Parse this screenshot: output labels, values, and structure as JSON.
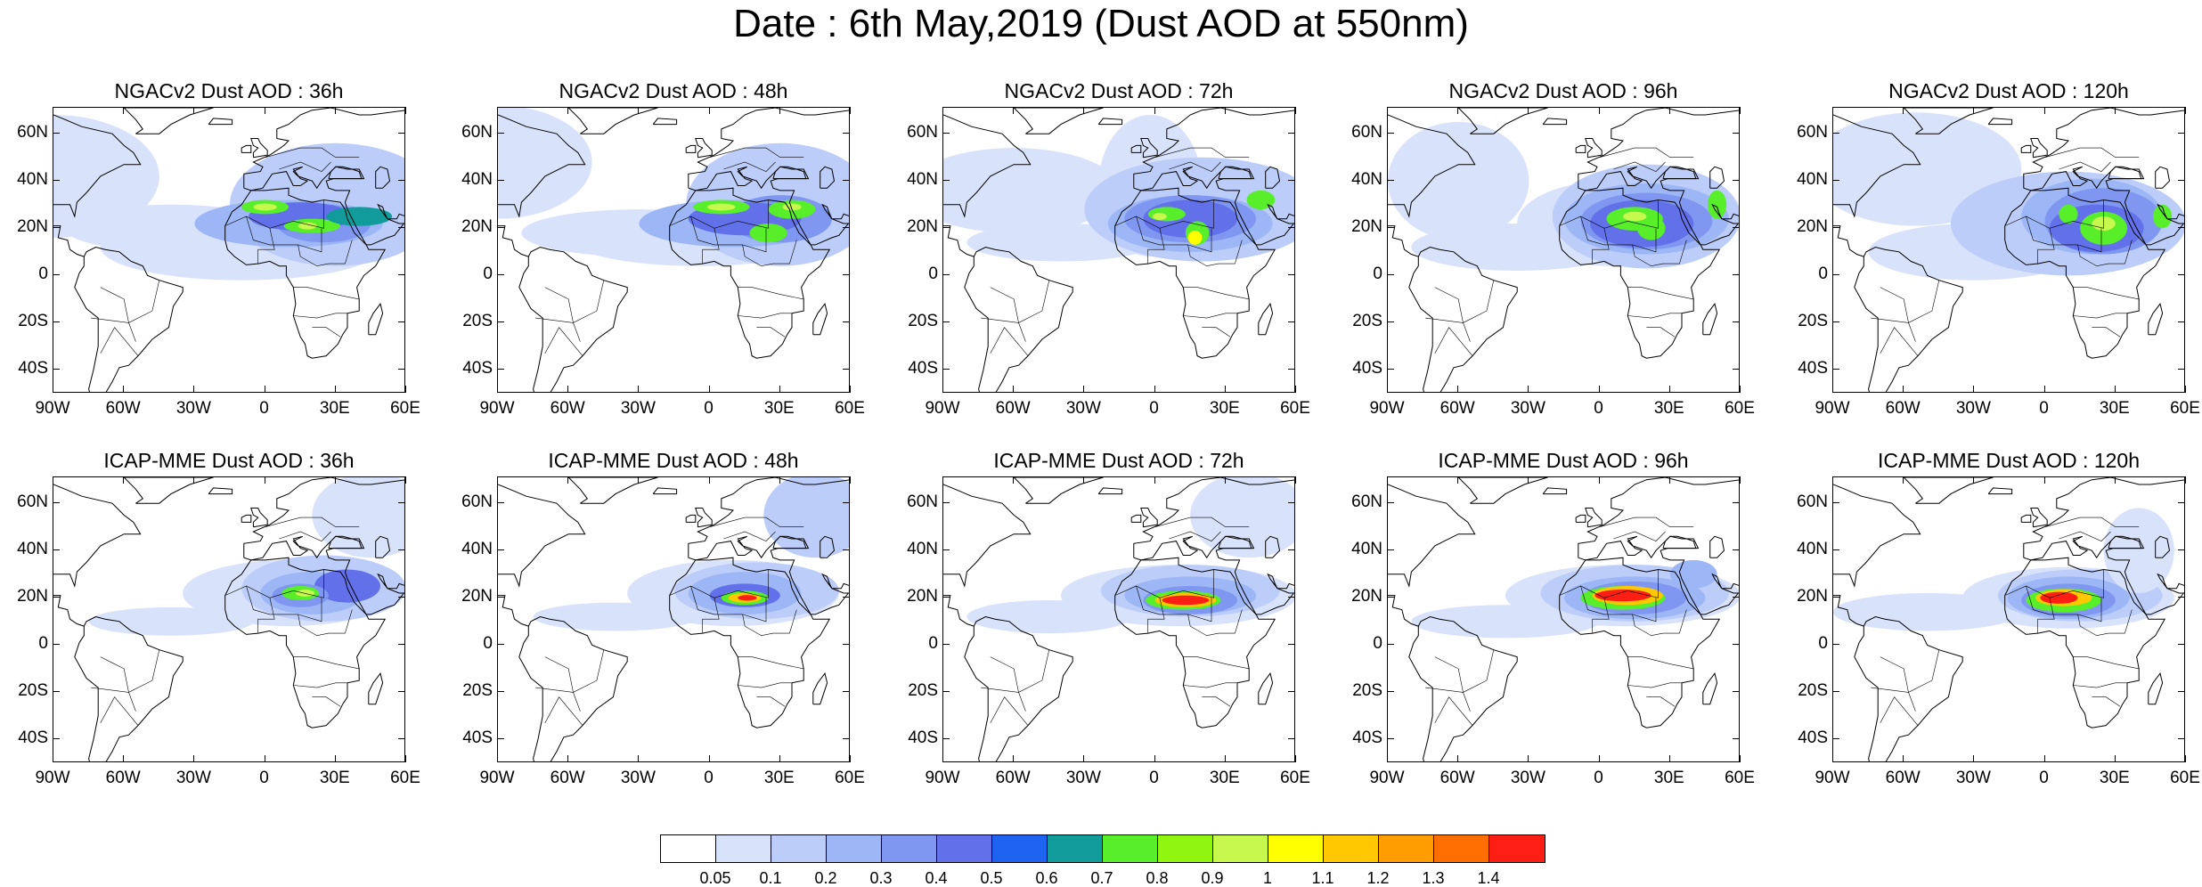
{
  "title": "Date : 6th May,2019 (Dust AOD at 550nm)",
  "axes": {
    "lat_labels": [
      "60N",
      "40N",
      "20N",
      "0",
      "20S",
      "40S"
    ],
    "lon_labels": [
      "90W",
      "60W",
      "30W",
      "0",
      "30E",
      "60E"
    ]
  },
  "panels": [
    {
      "title": "NGACv2 Dust AOD : 36h",
      "model": "NGACv2",
      "lead": "36h"
    },
    {
      "title": "NGACv2 Dust AOD : 48h",
      "model": "NGACv2",
      "lead": "48h"
    },
    {
      "title": "NGACv2 Dust AOD : 72h",
      "model": "NGACv2",
      "lead": "72h"
    },
    {
      "title": "NGACv2 Dust AOD : 96h",
      "model": "NGACv2",
      "lead": "96h"
    },
    {
      "title": "NGACv2 Dust AOD : 120h",
      "model": "NGACv2",
      "lead": "120h"
    },
    {
      "title": "ICAP-MME Dust AOD : 36h",
      "model": "ICAP-MME",
      "lead": "36h"
    },
    {
      "title": "ICAP-MME Dust AOD : 48h",
      "model": "ICAP-MME",
      "lead": "48h"
    },
    {
      "title": "ICAP-MME Dust AOD : 72h",
      "model": "ICAP-MME",
      "lead": "72h"
    },
    {
      "title": "ICAP-MME Dust AOD : 96h",
      "model": "ICAP-MME",
      "lead": "96h"
    },
    {
      "title": "ICAP-MME Dust AOD : 120h",
      "model": "ICAP-MME",
      "lead": "120h"
    }
  ],
  "colorbar": {
    "labels": [
      "0.05",
      "0.1",
      "0.2",
      "0.3",
      "0.4",
      "0.5",
      "0.6",
      "0.7",
      "0.8",
      "0.9",
      "1",
      "1.1",
      "1.2",
      "1.3",
      "1.4"
    ],
    "colors": [
      "#ffffff",
      "#d9e2fb",
      "#bccdf9",
      "#9cb6f6",
      "#7f97f0",
      "#6271e9",
      "#1e64f0",
      "#119b9b",
      "#58ee2a",
      "#90f50f",
      "#c6f84d",
      "#ffff00",
      "#ffc800",
      "#ff9c00",
      "#ff6e00",
      "#ff1e14"
    ]
  }
}
